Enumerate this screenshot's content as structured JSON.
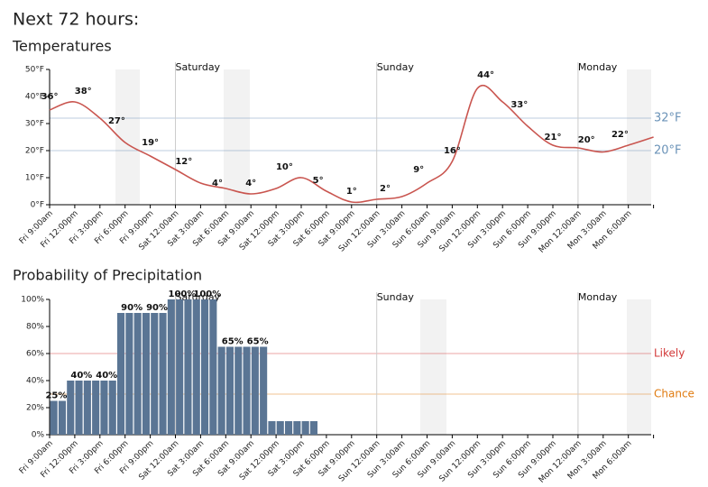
{
  "title": "Next 72 hours:",
  "chart_data": [
    {
      "type": "line",
      "title": "Temperatures",
      "categories": [
        "Fri 9:00am",
        "Fri 12:00pm",
        "Fri 3:00pm",
        "Fri 6:00pm",
        "Fri 9:00pm",
        "Sat 12:00am",
        "Sat 3:00am",
        "Sat 6:00am",
        "Sat 9:00am",
        "Sat 12:00pm",
        "Sat 3:00pm",
        "Sat 6:00pm",
        "Sat 9:00pm",
        "Sun 12:00am",
        "Sun 3:00am",
        "Sun 6:00am",
        "Sun 9:00am",
        "Sun 12:00pm",
        "Sun 3:00pm",
        "Sun 6:00pm",
        "Sun 9:00pm",
        "Mon 12:00am",
        "Mon 3:00am",
        "Mon 6:00am",
        null
      ],
      "values": [
        35,
        38,
        32,
        23,
        18,
        13,
        8,
        6,
        4,
        6,
        10,
        5,
        1,
        2,
        3,
        8,
        16,
        43,
        38,
        29,
        22,
        21,
        19.5,
        22,
        25
      ],
      "color": "#c9554f",
      "ylim": [
        0,
        50
      ],
      "yticks": [
        {
          "value": 0,
          "label": "0°F"
        },
        {
          "value": 10,
          "label": "10°F"
        },
        {
          "value": 20,
          "label": "20°F"
        },
        {
          "value": 30,
          "label": "30°F"
        },
        {
          "value": 40,
          "label": "40°F"
        },
        {
          "value": 50,
          "label": "50°F"
        }
      ],
      "annotations": {
        "values": [
          36,
          38,
          27,
          19,
          12,
          4,
          4,
          10,
          5,
          1,
          2,
          9,
          16,
          44,
          33,
          21,
          20,
          22
        ],
        "value_labels": [
          "36°",
          "38°",
          "27°",
          "19°",
          "12°",
          "4°",
          "4°",
          "10°",
          "5°",
          "1°",
          "2°",
          "9°",
          "16°",
          "44°",
          "33°",
          "21°",
          "20°",
          "22°"
        ]
      },
      "reference_lines": [
        {
          "value": 32,
          "label": "32°F",
          "color": "#6b93b8"
        },
        {
          "value": 20,
          "label": "20°F",
          "color": "#6b93b8"
        }
      ],
      "day_markers": [
        {
          "label": "Saturday",
          "at": "Sat 12:00am"
        },
        {
          "label": "Sunday",
          "at": "Sun 12:00am"
        },
        {
          "label": "Monday",
          "at": "Mon 12:00am"
        }
      ]
    },
    {
      "type": "bar",
      "title": "Probability of Precipitation",
      "categories": [
        "Fri 9:00am",
        "Fri 12:00pm",
        "Fri 3:00pm",
        "Fri 6:00pm",
        "Fri 9:00pm",
        "Sat 12:00am",
        "Sat 3:00am",
        "Sat 6:00am",
        "Sat 9:00am",
        "Sat 12:00pm",
        "Sat 3:00pm",
        "Sat 6:00pm",
        "Sat 9:00pm",
        "Sun 12:00am",
        "Sun 3:00am",
        "Sun 6:00am",
        "Sun 9:00am",
        "Sun 12:00pm",
        "Sun 3:00pm",
        "Sun 6:00pm",
        "Sun 9:00pm",
        "Mon 12:00am",
        "Mon 3:00am",
        "Mon 6:00am",
        null
      ],
      "hourly_values": [
        25,
        25,
        40,
        40,
        40,
        40,
        40,
        40,
        90,
        90,
        90,
        90,
        90,
        90,
        100,
        100,
        100,
        100,
        100,
        100,
        65,
        65,
        65,
        65,
        65,
        65,
        10,
        10,
        10,
        10,
        10,
        10,
        0,
        0,
        0,
        0,
        0,
        0,
        0,
        0,
        0,
        0,
        0,
        0,
        0,
        0,
        0,
        0,
        0,
        0,
        0,
        0,
        0,
        0,
        0,
        0,
        0,
        0,
        0,
        0,
        0,
        0,
        0,
        0,
        0,
        0,
        0,
        0,
        0,
        0,
        0,
        0
      ],
      "color": "#5a7594",
      "ylim": [
        0,
        100
      ],
      "yticks": [
        {
          "value": 0,
          "label": "0%"
        },
        {
          "value": 20,
          "label": "20%"
        },
        {
          "value": 40,
          "label": "40%"
        },
        {
          "value": 60,
          "label": "60%"
        },
        {
          "value": 80,
          "label": "80%"
        },
        {
          "value": 100,
          "label": "100%"
        }
      ],
      "annotations": {
        "values": [
          25,
          40,
          40,
          90,
          90,
          100,
          100,
          65,
          65
        ],
        "value_labels": [
          "25%",
          "40%",
          "40%",
          "90%",
          "90%",
          "100%",
          "100%",
          "65%",
          "65%"
        ]
      },
      "reference_lines": [
        {
          "value": 60,
          "label": "Likely",
          "color": "#d33a3a"
        },
        {
          "value": 30,
          "label": "Chance",
          "color": "#e07b10"
        }
      ],
      "day_markers": [
        {
          "label": "Saturday",
          "at": "Sat 12:00am"
        },
        {
          "label": "Sunday",
          "at": "Sun 12:00am"
        },
        {
          "label": "Monday",
          "at": "Mon 12:00am"
        }
      ]
    }
  ]
}
